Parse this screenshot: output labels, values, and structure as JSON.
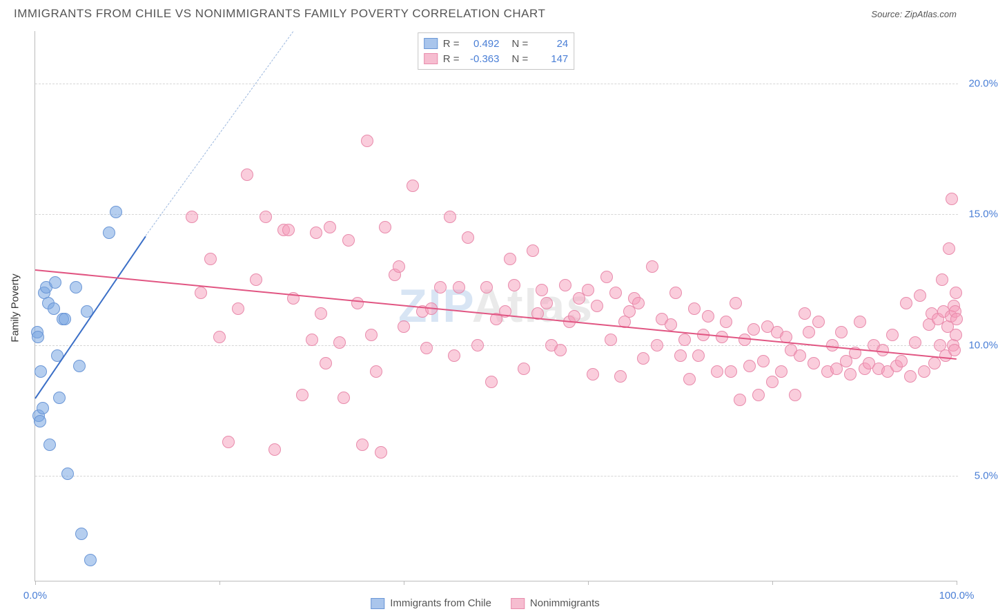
{
  "title": "IMMIGRANTS FROM CHILE VS NONIMMIGRANTS FAMILY POVERTY CORRELATION CHART",
  "source_label": "Source:",
  "source_value": "ZipAtlas.com",
  "yaxis_title": "Family Poverty",
  "watermark_a": "ZIP",
  "watermark_b": "Atlas",
  "chart": {
    "background_color": "#ffffff",
    "grid_color": "#d5d5d5",
    "axis_color": "#bbbbbb",
    "tick_label_color": "#4a7fd6",
    "xlim": [
      0,
      100
    ],
    "ylim": [
      1,
      22
    ],
    "yticks": [
      {
        "v": 5,
        "label": "5.0%"
      },
      {
        "v": 10,
        "label": "10.0%"
      },
      {
        "v": 15,
        "label": "15.0%"
      },
      {
        "v": 20,
        "label": "20.0%"
      }
    ],
    "xticks_minor": [
      0,
      20,
      40,
      60,
      80,
      100
    ],
    "xticks_labeled": [
      {
        "v": 0,
        "label": "0.0%"
      },
      {
        "v": 100,
        "label": "100.0%"
      }
    ],
    "point_radius": 9,
    "series": [
      {
        "key": "immigrants",
        "name": "Immigrants from Chile",
        "fill": "rgba(120,165,225,0.55)",
        "stroke": "#6a96d6",
        "swatch_fill": "#a9c5ec",
        "swatch_stroke": "#6a96d6",
        "R": "0.492",
        "N": "24",
        "trend": {
          "x1": 0,
          "y1": 8.0,
          "x2": 12,
          "y2": 14.2,
          "color": "#3b6fc7",
          "width": 2.5,
          "dash": false
        },
        "trend_ext": {
          "x1": 12,
          "y1": 14.2,
          "x2": 28,
          "y2": 22.0,
          "color": "#9bb7de",
          "width": 1,
          "dash": true
        },
        "points": [
          [
            0.2,
            10.5
          ],
          [
            0.3,
            10.3
          ],
          [
            0.4,
            7.3
          ],
          [
            0.5,
            7.1
          ],
          [
            0.6,
            9.0
          ],
          [
            0.8,
            7.6
          ],
          [
            1.0,
            12.0
          ],
          [
            1.2,
            12.2
          ],
          [
            1.4,
            11.6
          ],
          [
            1.6,
            6.2
          ],
          [
            2.0,
            11.4
          ],
          [
            2.2,
            12.4
          ],
          [
            2.4,
            9.6
          ],
          [
            2.6,
            8.0
          ],
          [
            3.0,
            11.0
          ],
          [
            3.2,
            11.0
          ],
          [
            3.5,
            5.1
          ],
          [
            4.4,
            12.2
          ],
          [
            4.8,
            9.2
          ],
          [
            5.0,
            2.8
          ],
          [
            5.6,
            11.3
          ],
          [
            6.0,
            1.8
          ],
          [
            8.0,
            14.3
          ],
          [
            8.8,
            15.1
          ]
        ]
      },
      {
        "key": "nonimmigrants",
        "name": "Nonimmigrants",
        "fill": "rgba(245,155,185,0.5)",
        "stroke": "#e88aab",
        "swatch_fill": "#f6bdd0",
        "swatch_stroke": "#e88aab",
        "R": "-0.363",
        "N": "147",
        "trend": {
          "x1": 0,
          "y1": 12.9,
          "x2": 100,
          "y2": 9.5,
          "color": "#e15582",
          "width": 2.5,
          "dash": false
        },
        "points": [
          [
            17,
            14.9
          ],
          [
            18,
            12.0
          ],
          [
            19,
            13.3
          ],
          [
            20,
            10.3
          ],
          [
            21,
            6.3
          ],
          [
            22,
            11.4
          ],
          [
            23,
            16.5
          ],
          [
            24,
            12.5
          ],
          [
            25,
            14.9
          ],
          [
            26,
            6.0
          ],
          [
            27,
            14.4
          ],
          [
            27.5,
            14.4
          ],
          [
            28,
            11.8
          ],
          [
            29,
            8.1
          ],
          [
            30,
            10.2
          ],
          [
            30.5,
            14.3
          ],
          [
            31,
            11.2
          ],
          [
            31.5,
            9.3
          ],
          [
            32,
            14.5
          ],
          [
            33,
            10.1
          ],
          [
            33.5,
            8.0
          ],
          [
            34,
            14.0
          ],
          [
            35,
            11.6
          ],
          [
            35.5,
            6.2
          ],
          [
            36,
            17.8
          ],
          [
            36.5,
            10.4
          ],
          [
            37,
            9.0
          ],
          [
            37.5,
            5.9
          ],
          [
            38,
            14.5
          ],
          [
            39,
            12.7
          ],
          [
            39.5,
            13.0
          ],
          [
            40,
            10.7
          ],
          [
            41,
            16.1
          ],
          [
            42,
            11.3
          ],
          [
            42.5,
            9.9
          ],
          [
            43,
            11.4
          ],
          [
            44,
            12.2
          ],
          [
            45,
            14.9
          ],
          [
            45.5,
            9.6
          ],
          [
            46,
            12.2
          ],
          [
            47,
            14.1
          ],
          [
            48,
            10.0
          ],
          [
            49,
            12.2
          ],
          [
            49.5,
            8.6
          ],
          [
            50,
            11.0
          ],
          [
            51,
            11.3
          ],
          [
            51.5,
            13.3
          ],
          [
            52,
            12.3
          ],
          [
            53,
            9.1
          ],
          [
            54,
            13.6
          ],
          [
            54.5,
            11.2
          ],
          [
            55,
            12.1
          ],
          [
            55.5,
            11.6
          ],
          [
            56,
            10.0
          ],
          [
            57,
            9.8
          ],
          [
            57.5,
            12.3
          ],
          [
            58,
            10.9
          ],
          [
            58.5,
            11.1
          ],
          [
            59,
            11.8
          ],
          [
            60,
            12.1
          ],
          [
            60.5,
            8.9
          ],
          [
            61,
            11.5
          ],
          [
            62,
            12.6
          ],
          [
            62.5,
            10.2
          ],
          [
            63,
            12.0
          ],
          [
            63.5,
            8.8
          ],
          [
            64,
            10.9
          ],
          [
            64.5,
            11.3
          ],
          [
            65,
            11.8
          ],
          [
            65.5,
            11.6
          ],
          [
            66,
            9.5
          ],
          [
            67,
            13.0
          ],
          [
            67.5,
            10.0
          ],
          [
            68,
            11.0
          ],
          [
            69,
            10.8
          ],
          [
            69.5,
            12.0
          ],
          [
            70,
            9.6
          ],
          [
            70.5,
            10.2
          ],
          [
            71,
            8.7
          ],
          [
            71.5,
            11.4
          ],
          [
            72,
            9.6
          ],
          [
            72.5,
            10.4
          ],
          [
            73,
            11.1
          ],
          [
            74,
            9.0
          ],
          [
            74.5,
            10.3
          ],
          [
            75,
            10.9
          ],
          [
            75.5,
            9.0
          ],
          [
            76,
            11.6
          ],
          [
            76.5,
            7.9
          ],
          [
            77,
            10.2
          ],
          [
            77.5,
            9.2
          ],
          [
            78,
            10.6
          ],
          [
            78.5,
            8.1
          ],
          [
            79,
            9.4
          ],
          [
            79.5,
            10.7
          ],
          [
            80,
            8.6
          ],
          [
            80.5,
            10.5
          ],
          [
            81,
            9.0
          ],
          [
            81.5,
            10.3
          ],
          [
            82,
            9.8
          ],
          [
            82.5,
            8.1
          ],
          [
            83,
            9.6
          ],
          [
            83.5,
            11.2
          ],
          [
            84,
            10.5
          ],
          [
            84.5,
            9.3
          ],
          [
            85,
            10.9
          ],
          [
            86,
            9.0
          ],
          [
            86.5,
            10.0
          ],
          [
            87,
            9.1
          ],
          [
            87.5,
            10.5
          ],
          [
            88,
            9.4
          ],
          [
            88.5,
            8.9
          ],
          [
            89,
            9.7
          ],
          [
            89.5,
            10.9
          ],
          [
            90,
            9.1
          ],
          [
            90.5,
            9.3
          ],
          [
            91,
            10.0
          ],
          [
            91.5,
            9.1
          ],
          [
            92,
            9.8
          ],
          [
            92.5,
            9.0
          ],
          [
            93,
            10.4
          ],
          [
            93.5,
            9.2
          ],
          [
            94,
            9.4
          ],
          [
            94.5,
            11.6
          ],
          [
            95,
            8.8
          ],
          [
            95.5,
            10.1
          ],
          [
            96,
            11.9
          ],
          [
            96.5,
            9.0
          ],
          [
            97,
            10.8
          ],
          [
            97.3,
            11.2
          ],
          [
            97.6,
            9.3
          ],
          [
            98,
            11.0
          ],
          [
            98.2,
            10.0
          ],
          [
            98.4,
            12.5
          ],
          [
            98.6,
            11.3
          ],
          [
            98.8,
            9.6
          ],
          [
            99,
            10.7
          ],
          [
            99.2,
            13.7
          ],
          [
            99.4,
            11.1
          ],
          [
            99.5,
            15.6
          ],
          [
            99.6,
            10.0
          ],
          [
            99.7,
            11.5
          ],
          [
            99.8,
            9.8
          ],
          [
            99.85,
            11.3
          ],
          [
            99.9,
            10.4
          ],
          [
            99.95,
            12.0
          ],
          [
            100,
            11.0
          ]
        ]
      }
    ],
    "upper_legend_labels": {
      "R": "R =",
      "N": "N ="
    },
    "bottom_legend": [
      "Immigrants from Chile",
      "Nonimmigrants"
    ]
  }
}
